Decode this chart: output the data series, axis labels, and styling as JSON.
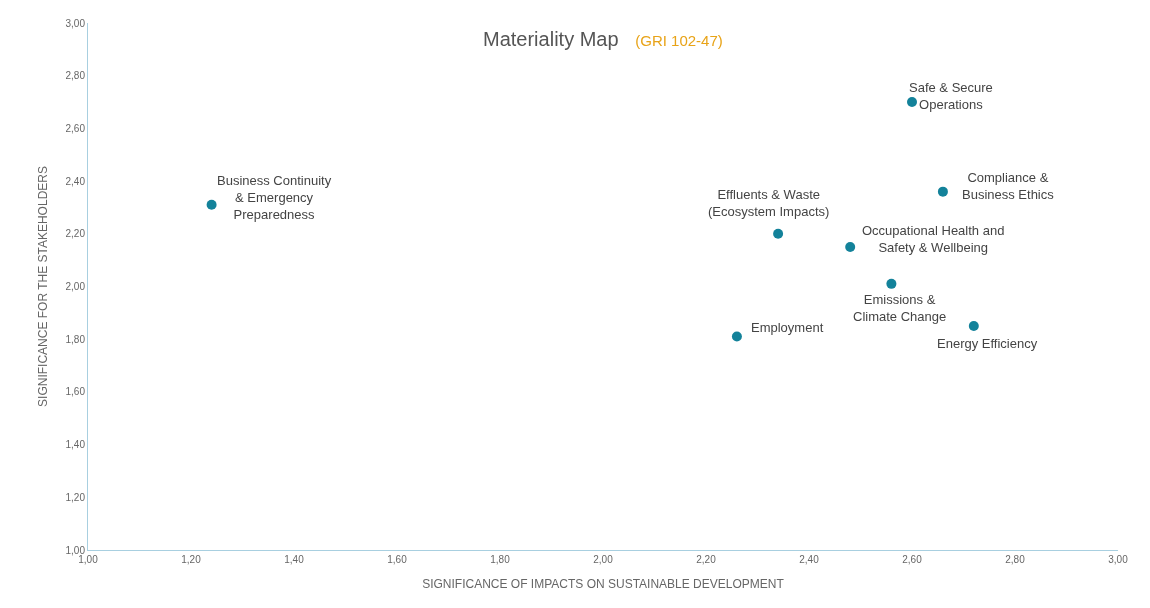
{
  "chart_data": {
    "type": "scatter",
    "title": "Materiality Map",
    "subtitle": "(GRI 102-47)",
    "xlabel": "SIGNIFICANCE OF IMPACTS ON SUSTAINABLE DEVELOPMENT",
    "ylabel": "SIGNIFICANCE FOR THE STAKEHOLDERS",
    "marker": "circle",
    "x": [
      1.24,
      2.34,
      2.26,
      2.48,
      2.56,
      2.6,
      2.66,
      2.72
    ],
    "series": [
      {
        "color": "#13829a",
        "values": [
          2.31,
          2.2,
          1.81,
          2.15,
          2.01,
          2.7,
          2.36,
          1.85
        ]
      }
    ],
    "annotations": [
      {
        "text": "Business Continuity\n& Emergency\nPreparedness",
        "x": 1.24,
        "y": 2.31
      },
      {
        "text": "Effluents & Waste\n(Ecosystem Impacts)",
        "x": 2.34,
        "y": 2.2
      },
      {
        "text": "Employment",
        "x": 2.26,
        "y": 1.81
      },
      {
        "text": "Occupational Health and\nSafety & Wellbeing",
        "x": 2.48,
        "y": 2.15
      },
      {
        "text": "Emissions &\nClimate Change",
        "x": 2.56,
        "y": 2.01
      },
      {
        "text": "Safe & Secure\nOperations",
        "x": 2.6,
        "y": 2.7
      },
      {
        "text": "Compliance &\nBusiness Ethics",
        "x": 2.66,
        "y": 2.36
      },
      {
        "text": "Energy Efficiency",
        "x": 2.72,
        "y": 1.85
      }
    ],
    "xlim": [
      1,
      3
    ],
    "ylim": [
      1,
      3
    ],
    "xticks": [
      {
        "value": 1,
        "label": "1,00"
      },
      {
        "value": 1.2,
        "label": "1,20"
      },
      {
        "value": 1.4,
        "label": "1,40"
      },
      {
        "value": 1.6,
        "label": "1,60"
      },
      {
        "value": 1.8,
        "label": "1,80"
      },
      {
        "value": 2,
        "label": "2,00"
      },
      {
        "value": 2.2,
        "label": "2,20"
      },
      {
        "value": 2.4,
        "label": "2,40"
      },
      {
        "value": 2.6,
        "label": "2,60"
      },
      {
        "value": 2.8,
        "label": "2,80"
      },
      {
        "value": 3,
        "label": "3,00"
      }
    ],
    "yticks": [
      {
        "value": 1,
        "label": "1,00"
      },
      {
        "value": 1.2,
        "label": "1,20"
      },
      {
        "value": 1.4,
        "label": "1,40"
      },
      {
        "value": 1.6,
        "label": "1,60"
      },
      {
        "value": 1.8,
        "label": "1,80"
      },
      {
        "value": 2,
        "label": "2,00"
      },
      {
        "value": 2.2,
        "label": "2,20"
      },
      {
        "value": 2.4,
        "label": "2,40"
      },
      {
        "value": 2.6,
        "label": "2,60"
      },
      {
        "value": 2.8,
        "label": "2,80"
      },
      {
        "value": 3,
        "label": "3,00"
      }
    ]
  }
}
